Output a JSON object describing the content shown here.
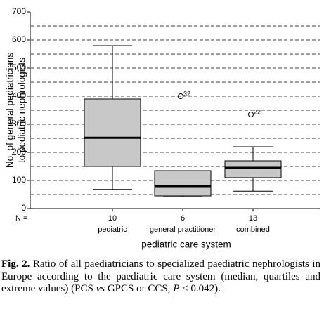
{
  "chart_data": {
    "type": "box",
    "y_label": [
      "No. of general pediatricians",
      "to pediatric nephrologists"
    ],
    "x_label": "pediatric care system",
    "n_label": "N =",
    "categories": [
      "pediatric",
      "general practitioner",
      "combined"
    ],
    "n": [
      10,
      6,
      13
    ],
    "boxes": [
      {
        "whisker_low": 68,
        "q1": 150,
        "median": 252,
        "q3": 390,
        "whisker_high": 580,
        "outliers": []
      },
      {
        "whisker_low": 42,
        "q1": 45,
        "median": 80,
        "q3": 135,
        "whisker_high": 135,
        "outliers": [
          {
            "value": 400,
            "label": "32"
          }
        ]
      },
      {
        "whisker_low": 62,
        "q1": 110,
        "median": 145,
        "q3": 170,
        "whisker_high": 220,
        "outliers": [
          {
            "value": 335,
            "label": "22"
          }
        ]
      }
    ],
    "color": "#c8c8c8",
    "ylim": [
      0,
      700
    ],
    "yticks": [
      0,
      100,
      200,
      300,
      400,
      500,
      600,
      700
    ],
    "grid_lines": [
      50,
      100,
      150,
      200,
      250,
      300,
      350,
      400,
      450,
      500,
      550,
      600,
      650
    ]
  },
  "caption": {
    "label": "Fig. 2.",
    "parts": [
      "Ratio of all paediatricians to specialized paediatric nephrologists in Europe according to the paediatric care system (median, quartiles and extreme values) (PCS ",
      "vs",
      " GPCS or CCS, ",
      "P",
      " < 0.042)."
    ]
  }
}
